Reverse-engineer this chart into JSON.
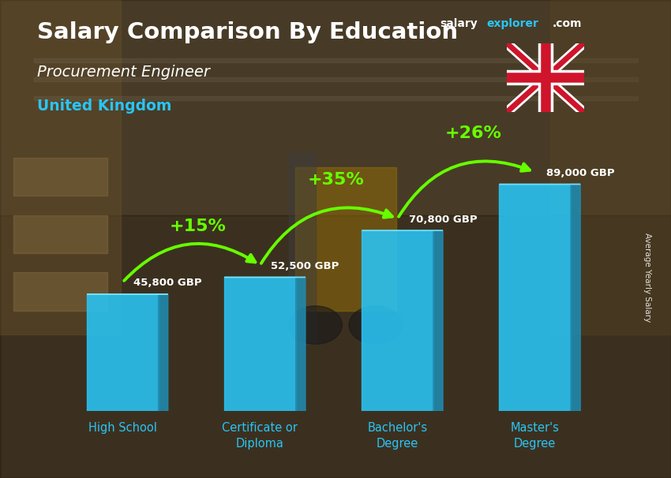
{
  "title_line1": "Salary Comparison By Education",
  "subtitle_line1": "Procurement Engineer",
  "subtitle_line2": "United Kingdom",
  "categories": [
    "High School",
    "Certificate or\nDiploma",
    "Bachelor's\nDegree",
    "Master's\nDegree"
  ],
  "values": [
    45800,
    52500,
    70800,
    89000
  ],
  "value_labels": [
    "45,800 GBP",
    "52,500 GBP",
    "70,800 GBP",
    "89,000 GBP"
  ],
  "pct_labels": [
    "+15%",
    "+35%",
    "+26%"
  ],
  "bar_color_main": "#29c5f6",
  "bar_color_light": "#7de8ff",
  "bar_color_dark": "#1a9fc4",
  "bar_color_side": "#1f8bb0",
  "text_color_white": "#ffffff",
  "text_color_cyan": "#29c5f6",
  "text_color_green": "#66ff00",
  "bg_top": "#6b5a3e",
  "bg_bottom": "#3a2e1e",
  "watermark_salary": "salary",
  "watermark_explorer": "explorer",
  "watermark_com": ".com",
  "side_label": "Average Yearly Salary",
  "ylim_max": 105000,
  "bar_width": 0.52
}
